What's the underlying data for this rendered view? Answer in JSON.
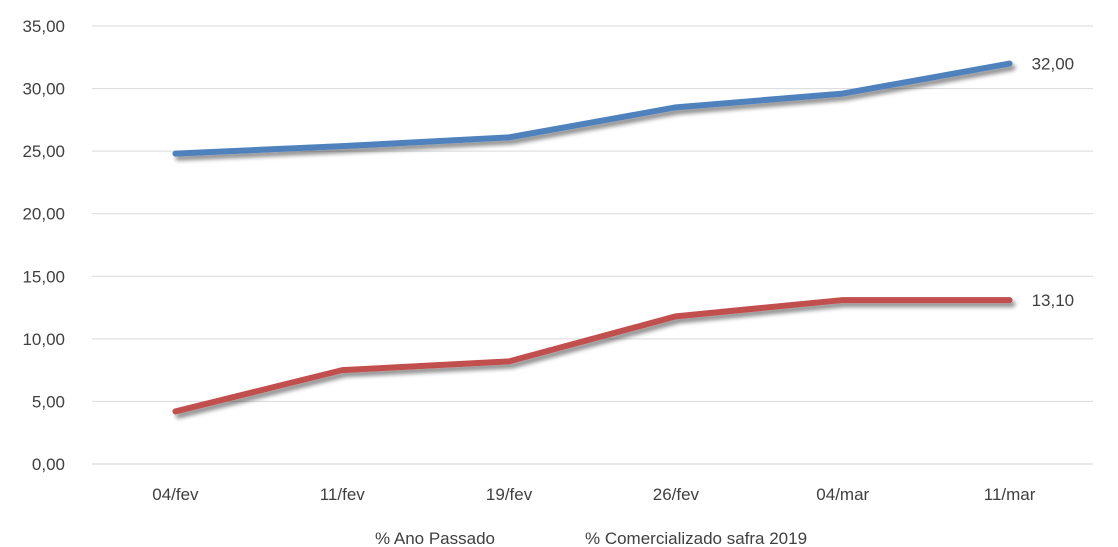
{
  "chart_data": {
    "type": "line",
    "categories": [
      "04/fev",
      "11/fev",
      "19/fev",
      "26/fev",
      "04/mar",
      "11/mar"
    ],
    "series": [
      {
        "name": "% Ano Passado",
        "values": [
          4.2,
          7.5,
          8.2,
          11.8,
          13.1,
          13.1
        ],
        "color": "#c0504d"
      },
      {
        "name": "% Comercializado safra 2019",
        "values": [
          24.8,
          25.4,
          26.1,
          28.5,
          29.6,
          32.0
        ],
        "color": "#4f81bd"
      }
    ],
    "data_labels": [
      {
        "series": 1,
        "index": 5,
        "text": "32,00"
      },
      {
        "series": 0,
        "index": 5,
        "text": "13,10"
      }
    ],
    "yticks": [
      "0,00",
      "5,00",
      "10,00",
      "15,00",
      "20,00",
      "25,00",
      "30,00",
      "35,00"
    ],
    "ylim": [
      0,
      35
    ],
    "grid": true,
    "legend_position": "bottom",
    "title": "",
    "xlabel": "",
    "ylabel": ""
  }
}
